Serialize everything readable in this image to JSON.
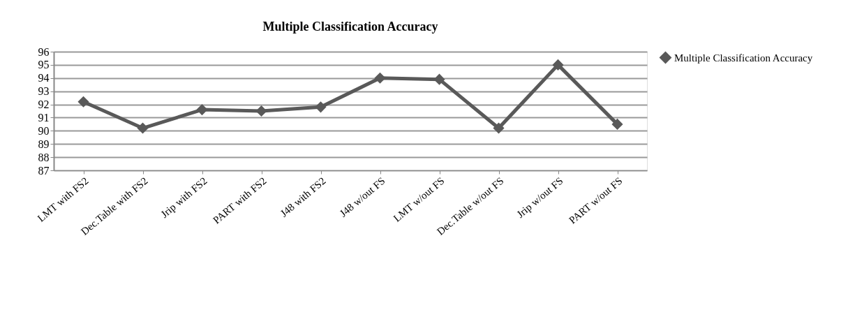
{
  "chart_data": {
    "type": "line",
    "title": "Multiple Classification Accuracy",
    "categories": [
      "LMT with FS2",
      "Dec.Table with FS2",
      "Jrip with FS2",
      "PART with FS2",
      "J48 with FS2",
      "J48 w/out FS",
      "LMT w/out FS",
      "Dec.Table w/out FS",
      "Jrip w/out FS",
      "PART w/out FS"
    ],
    "series": [
      {
        "name": "Multiple Classification Accuracy",
        "color": "#595959",
        "values": [
          92.2,
          90.2,
          91.6,
          91.5,
          91.8,
          94.0,
          93.9,
          90.2,
          95.0,
          90.5
        ]
      }
    ],
    "ylim": [
      87,
      96
    ],
    "yticks": [
      87,
      88,
      89,
      90,
      91,
      92,
      93,
      94,
      95,
      96
    ],
    "grid": "y",
    "legend": "right",
    "marker": "diamond",
    "line_style": "solid"
  }
}
